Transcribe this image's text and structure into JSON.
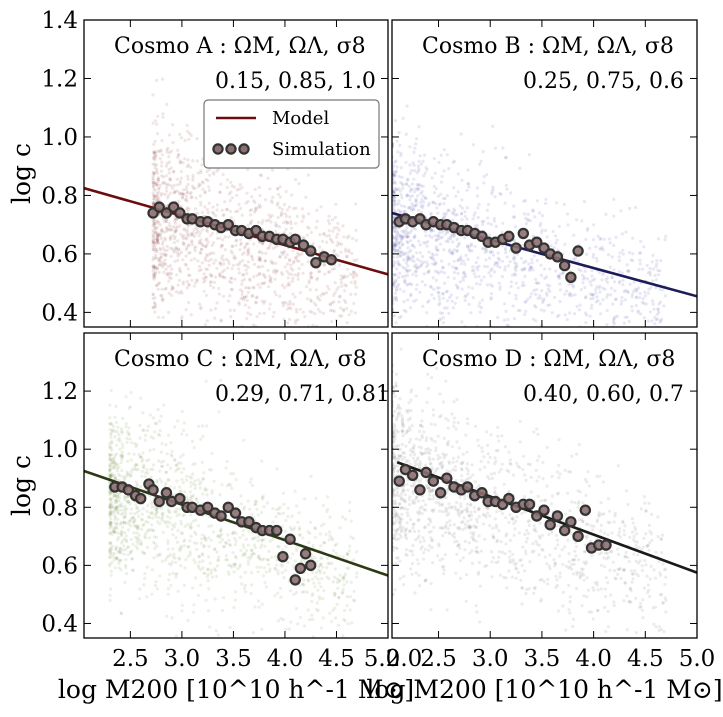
{
  "chart_data": [
    {
      "type": "scatter",
      "panel": "A",
      "annotation_line1": "Cosmo A : ΩM, ΩΛ, σ8",
      "annotation_line2": "0.15, 0.85, 1.0",
      "xlim": [
        2.05,
        5.0
      ],
      "ylim": [
        0.35,
        1.4
      ],
      "xticks": [],
      "yticks": [
        "0.4",
        "0.6",
        "0.8",
        "1.0",
        "1.2",
        "1.4"
      ],
      "ylabel": "log c",
      "xlabel": "",
      "color": "#6b0d0d",
      "scatter_color": "#8a3a3a",
      "scatter_xmin": 2.72,
      "model_line": {
        "x": [
          2.05,
          5.0
        ],
        "y": [
          0.825,
          0.53
        ]
      },
      "series": [
        {
          "name": "Simulation",
          "x": [
            2.72,
            2.78,
            2.85,
            2.92,
            2.98,
            3.05,
            3.1,
            3.18,
            3.25,
            3.32,
            3.38,
            3.45,
            3.52,
            3.58,
            3.65,
            3.72,
            3.78,
            3.85,
            3.92,
            3.98,
            4.05,
            4.1,
            4.18,
            4.25,
            4.3,
            4.38,
            4.45
          ],
          "y": [
            0.74,
            0.76,
            0.74,
            0.76,
            0.74,
            0.72,
            0.72,
            0.71,
            0.71,
            0.7,
            0.69,
            0.7,
            0.68,
            0.68,
            0.67,
            0.68,
            0.66,
            0.66,
            0.65,
            0.65,
            0.64,
            0.65,
            0.63,
            0.61,
            0.57,
            0.59,
            0.58
          ]
        }
      ],
      "legend": {
        "position": "upper-right",
        "items": [
          "Model",
          "Simulation"
        ]
      }
    },
    {
      "type": "scatter",
      "panel": "B",
      "annotation_line1": "Cosmo B : ΩM, ΩΛ, σ8",
      "annotation_line2": "0.25, 0.75, 0.6",
      "xlim": [
        2.05,
        5.0
      ],
      "ylim": [
        0.35,
        1.4
      ],
      "xticks": [],
      "yticks": [],
      "ylabel": "",
      "xlabel": "",
      "color": "#1c1c5a",
      "scatter_color": "#4a4aa8",
      "scatter_xmin": 2.05,
      "model_line": {
        "x": [
          2.05,
          5.0
        ],
        "y": [
          0.74,
          0.455
        ]
      },
      "series": [
        {
          "name": "Simulation",
          "x": [
            2.12,
            2.18,
            2.25,
            2.32,
            2.38,
            2.45,
            2.52,
            2.58,
            2.65,
            2.72,
            2.78,
            2.85,
            2.92,
            2.98,
            3.05,
            3.12,
            3.18,
            3.25,
            3.32,
            3.38,
            3.45,
            3.52,
            3.58,
            3.65,
            3.72,
            3.78,
            3.85
          ],
          "y": [
            0.71,
            0.72,
            0.71,
            0.72,
            0.7,
            0.71,
            0.7,
            0.7,
            0.69,
            0.68,
            0.68,
            0.67,
            0.66,
            0.64,
            0.64,
            0.65,
            0.66,
            0.62,
            0.67,
            0.63,
            0.64,
            0.62,
            0.6,
            0.59,
            0.56,
            0.52,
            0.61
          ]
        }
      ]
    },
    {
      "type": "scatter",
      "panel": "C",
      "annotation_line1": "Cosmo C : ΩM, ΩΛ, σ8",
      "annotation_line2": "0.29, 0.71, 0.81",
      "xlim": [
        2.05,
        5.0
      ],
      "ylim": [
        0.35,
        1.4
      ],
      "xticks": [
        "2.5",
        "3.0",
        "3.5",
        "4.0",
        "4.5",
        "5.0"
      ],
      "yticks": [
        "0.4",
        "0.6",
        "0.8",
        "1.0",
        "1.2"
      ],
      "ylabel": "log c",
      "xlabel": "log M200 [10^10 h^-1 M⊙]",
      "color": "#2b3a12",
      "scatter_color": "#6f8a3e",
      "scatter_xmin": 2.3,
      "model_line": {
        "x": [
          2.05,
          5.0
        ],
        "y": [
          0.925,
          0.565
        ]
      },
      "series": [
        {
          "name": "Simulation",
          "x": [
            2.35,
            2.42,
            2.48,
            2.55,
            2.6,
            2.68,
            2.72,
            2.78,
            2.85,
            2.9,
            2.98,
            3.05,
            3.1,
            3.18,
            3.25,
            3.32,
            3.38,
            3.45,
            3.52,
            3.58,
            3.65,
            3.72,
            3.78,
            3.85,
            3.92,
            3.98,
            4.05,
            4.1,
            4.15,
            4.2,
            4.25
          ],
          "y": [
            0.87,
            0.87,
            0.86,
            0.84,
            0.83,
            0.88,
            0.86,
            0.82,
            0.85,
            0.82,
            0.83,
            0.8,
            0.8,
            0.79,
            0.8,
            0.78,
            0.77,
            0.8,
            0.78,
            0.75,
            0.75,
            0.73,
            0.72,
            0.72,
            0.72,
            0.63,
            0.69,
            0.55,
            0.59,
            0.64,
            0.6
          ]
        }
      ]
    },
    {
      "type": "scatter",
      "panel": "D",
      "annotation_line1": "Cosmo D : ΩM, ΩΛ, σ8",
      "annotation_line2": "0.40, 0.60, 0.7",
      "xlim": [
        2.05,
        5.0
      ],
      "ylim": [
        0.35,
        1.4
      ],
      "xticks": [
        "2.0",
        "2.5",
        "3.0",
        "3.5",
        "4.0",
        "4.5",
        "5.0"
      ],
      "yticks": [],
      "ylabel": "",
      "xlabel": "log M200 [10^10 h^-1 M⊙]",
      "color": "#1a1a1a",
      "scatter_color": "#6a6a6a",
      "scatter_xmin": 2.05,
      "model_line": {
        "x": [
          2.1,
          5.0
        ],
        "y": [
          0.955,
          0.575
        ]
      },
      "series": [
        {
          "name": "Simulation",
          "x": [
            2.12,
            2.18,
            2.25,
            2.32,
            2.38,
            2.45,
            2.52,
            2.58,
            2.65,
            2.72,
            2.78,
            2.85,
            2.92,
            2.98,
            3.05,
            3.12,
            3.18,
            3.25,
            3.32,
            3.38,
            3.45,
            3.52,
            3.58,
            3.65,
            3.72,
            3.78,
            3.85,
            3.92,
            3.98,
            4.05,
            4.12
          ],
          "y": [
            0.89,
            0.93,
            0.91,
            0.86,
            0.92,
            0.89,
            0.85,
            0.9,
            0.87,
            0.86,
            0.87,
            0.84,
            0.85,
            0.82,
            0.82,
            0.81,
            0.83,
            0.8,
            0.81,
            0.81,
            0.77,
            0.79,
            0.74,
            0.77,
            0.72,
            0.75,
            0.7,
            0.79,
            0.66,
            0.67,
            0.67
          ]
        }
      ]
    }
  ],
  "legend": {
    "model_label": "Model",
    "simulation_label": "Simulation"
  },
  "labels": {
    "ylabel": "log c",
    "xlabel_prefix": "log M",
    "xlabel_sub": "200",
    "xlabel_unit": "[10",
    "xlabel_exp": "10",
    "xlabel_h": " h",
    "xlabel_hexp": "−1",
    "xlabel_msun": "M",
    "xlabel_sun": "⊙",
    "xlabel_close": "]"
  }
}
